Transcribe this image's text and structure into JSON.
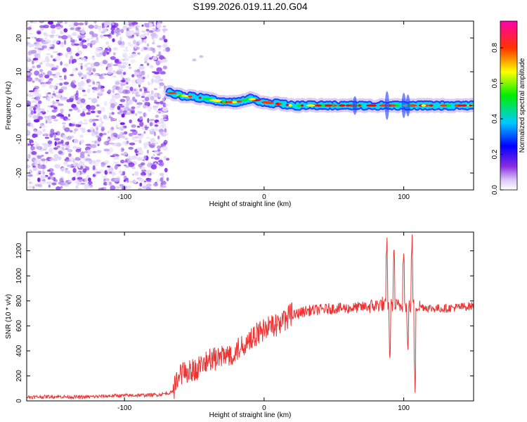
{
  "chart_data": [
    {
      "type": "heatmap",
      "title": "S199.2026.019.11.20.G04",
      "xlabel": "Height of straight line (km)",
      "ylabel": "Frequency (Hz)",
      "xlim": [
        -170,
        150
      ],
      "ylim": [
        -25,
        25
      ],
      "xticks": [
        -100,
        0,
        100
      ],
      "xtick_labels": [
        "-100",
        "0",
        "100"
      ],
      "yticks": [
        -20,
        -10,
        0,
        10,
        20
      ],
      "ytick_labels": [
        "-20",
        "-10",
        "0",
        "10",
        "20"
      ],
      "noise_region_x": [
        -170,
        -69
      ],
      "signal_start_x": -69,
      "ridge": {
        "x": [
          -69,
          -60,
          -50,
          -40,
          -30,
          -20,
          -10,
          0,
          10,
          20,
          30,
          40,
          50,
          60,
          70,
          80,
          90,
          100,
          110,
          120,
          130,
          140,
          150
        ],
        "freq": [
          4,
          3,
          2.5,
          2,
          1,
          1,
          2,
          1,
          0.5,
          0,
          0,
          0,
          0,
          0,
          0,
          0,
          0,
          0,
          0,
          0,
          0,
          0,
          0
        ]
      },
      "colorbar": {
        "label": "Normalized spectral amplitude",
        "range": [
          0,
          0.95
        ],
        "ticks": [
          0.0,
          0.2,
          0.4,
          0.6,
          0.8
        ],
        "tick_labels": [
          "0.0",
          "0.2",
          "0.4",
          "0.6",
          "0.8"
        ],
        "colormap": "rainbow (white-purple-blue-cyan-green-yellow-red-magenta)"
      }
    },
    {
      "type": "line",
      "title": "",
      "xlabel": "Height of straight line (km)",
      "ylabel": "SNR (10 * v/v)",
      "xlim": [
        -170,
        150
      ],
      "ylim": [
        0,
        1350
      ],
      "xticks": [
        -100,
        0,
        100
      ],
      "xtick_labels": [
        "-100",
        "0",
        "100"
      ],
      "yticks": [
        0,
        200,
        400,
        600,
        800,
        1000,
        1200
      ],
      "ytick_labels": [
        "0",
        "200",
        "400",
        "600",
        "800",
        "1000",
        "1200"
      ],
      "color": "#ee3333",
      "series": [
        {
          "name": "SNR",
          "x": [
            -170,
            -150,
            -130,
            -110,
            -90,
            -75,
            -65,
            -60,
            -50,
            -40,
            -30,
            -20,
            -10,
            0,
            10,
            20,
            30,
            40,
            50,
            60,
            70,
            80,
            85,
            88,
            90,
            93,
            96,
            100,
            103,
            106,
            108,
            110,
            120,
            130,
            140,
            150
          ],
          "y": [
            30,
            35,
            30,
            40,
            45,
            50,
            70,
            200,
            230,
            300,
            330,
            380,
            480,
            550,
            600,
            680,
            720,
            730,
            740,
            740,
            750,
            760,
            780,
            1250,
            320,
            1200,
            500,
            1230,
            380,
            1330,
            60,
            760,
            740,
            740,
            750,
            760
          ]
        }
      ]
    }
  ]
}
